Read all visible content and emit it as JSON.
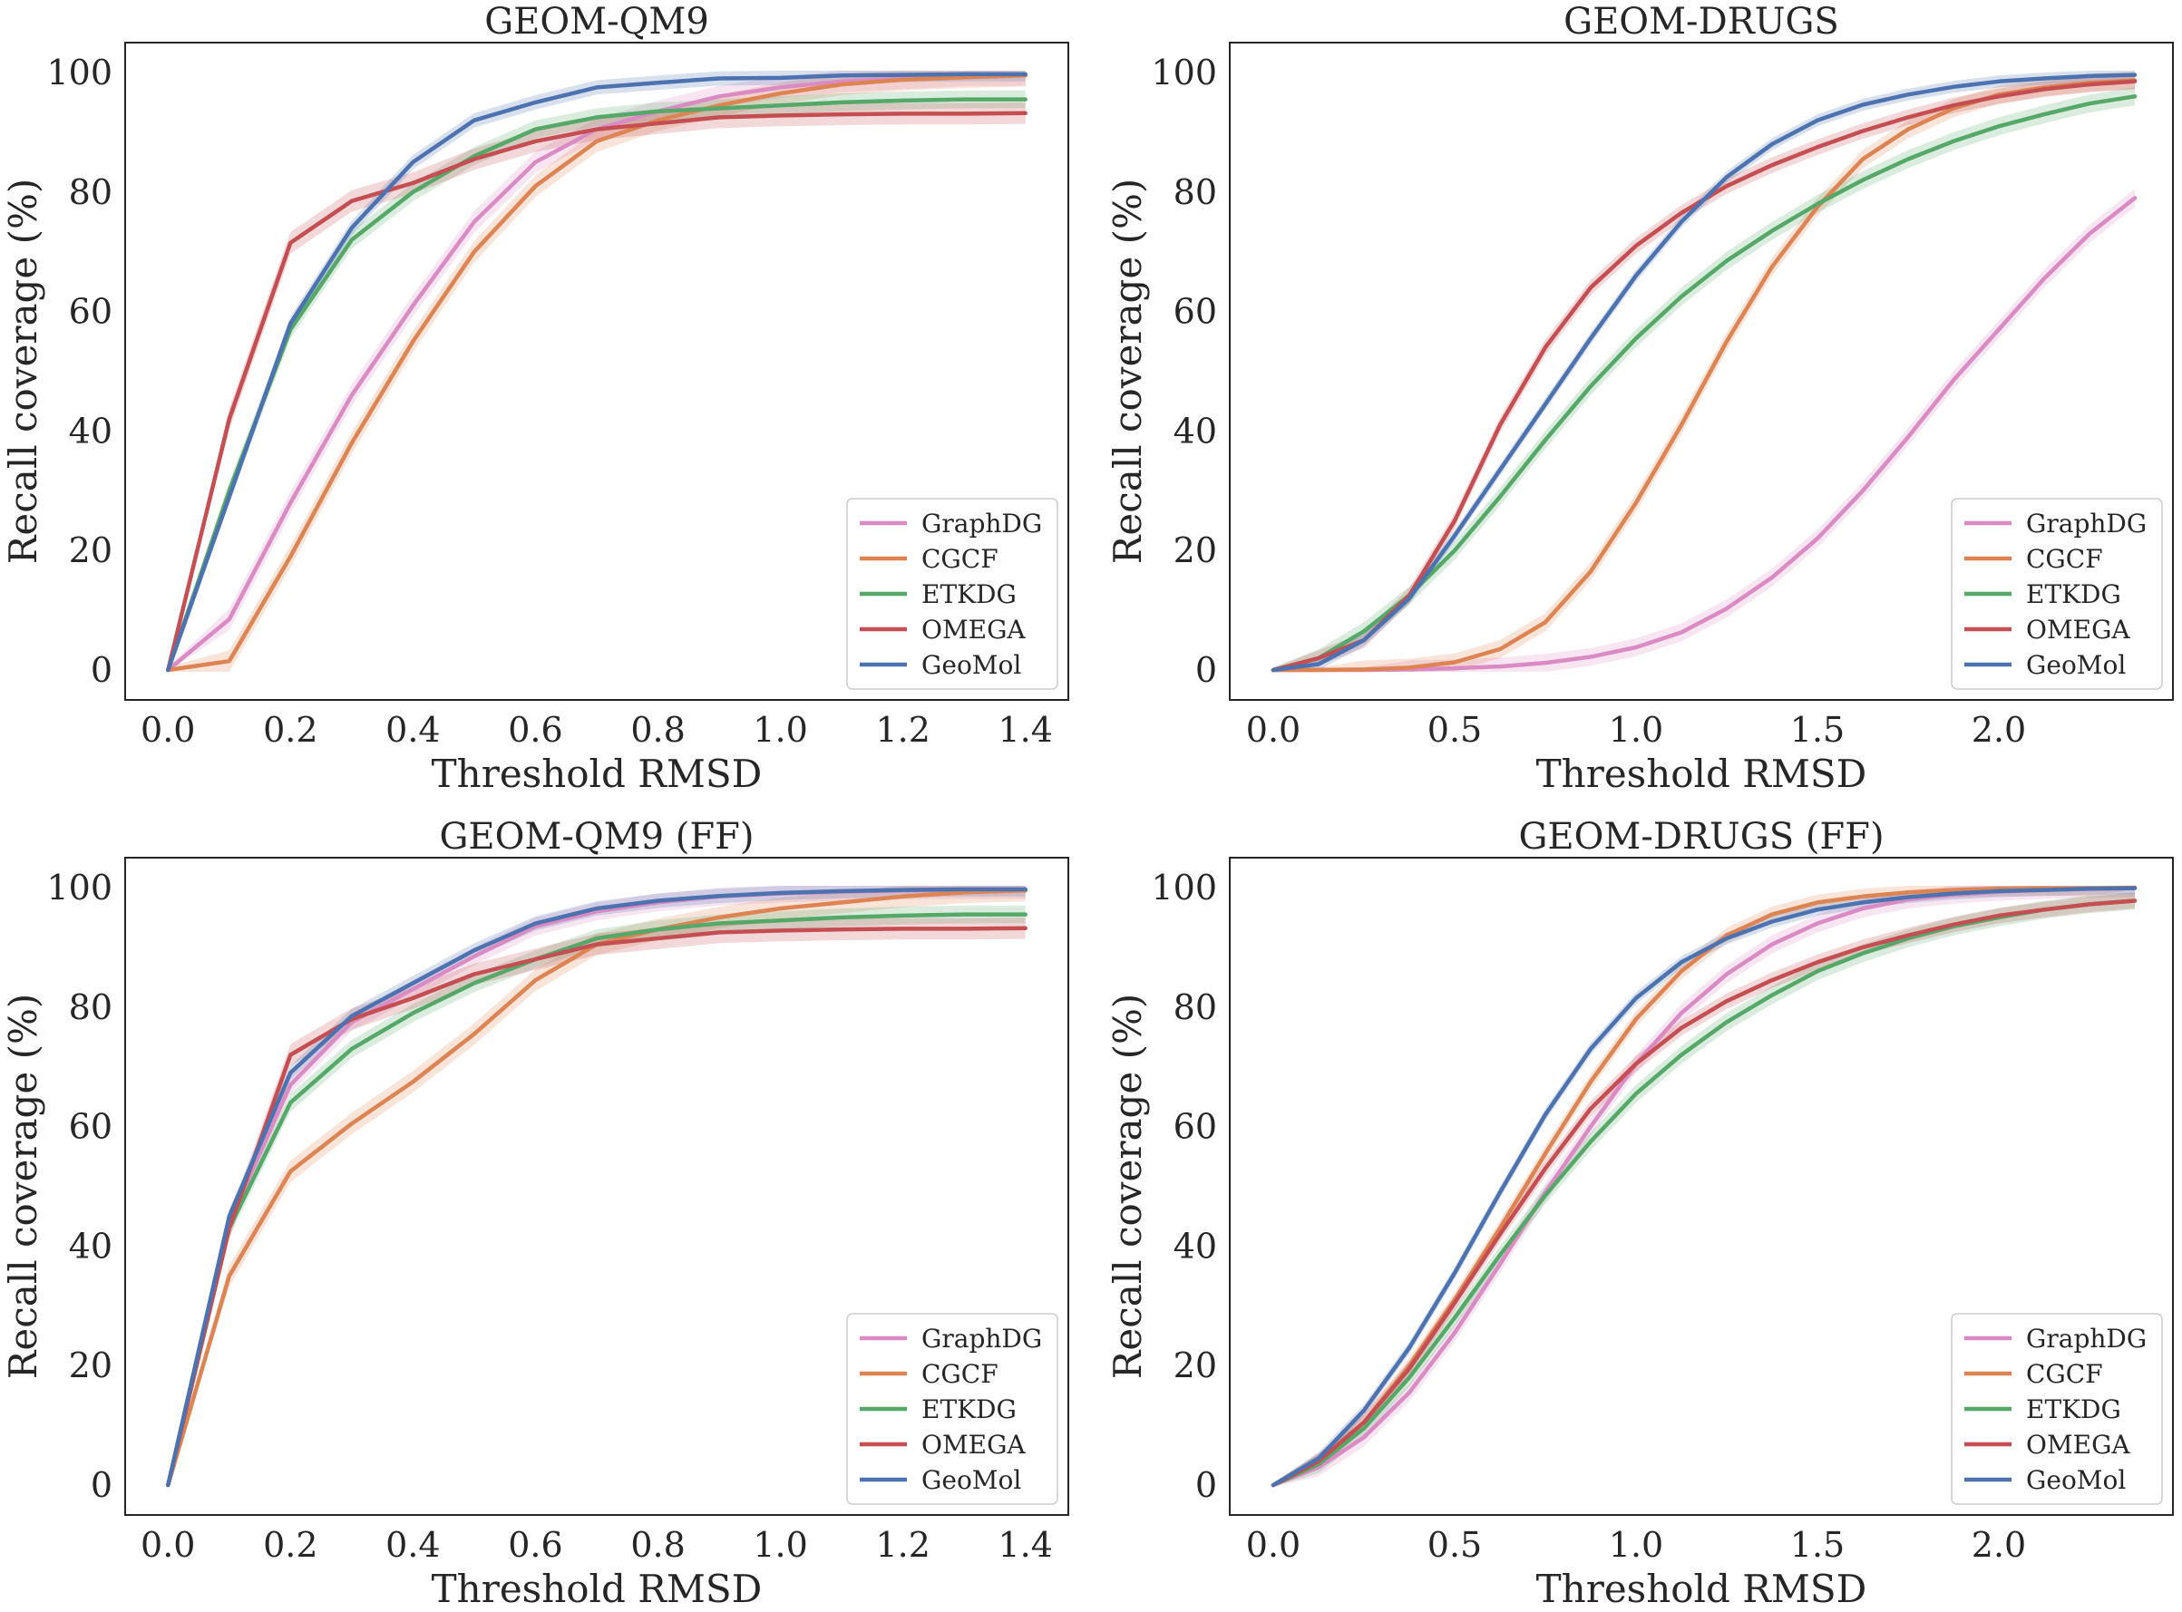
{
  "colors": {
    "GraphDG": "#da8bc3",
    "CGCF": "#dd8452",
    "ETKDG": "#55a868",
    "OMEGA": "#c44e52",
    "GeoMol": "#4c72b0"
  },
  "chart_data": [
    {
      "type": "line",
      "title": "GEOM-QM9",
      "xlabel": "Threshold RMSD",
      "ylabel": "Recall coverage (%)",
      "xlim": [
        -0.07,
        1.47
      ],
      "ylim": [
        -5,
        105
      ],
      "xticks": [
        0.0,
        0.2,
        0.4,
        0.6,
        0.8,
        1.0,
        1.2,
        1.4
      ],
      "xtick_labels": [
        "0.0",
        "0.2",
        "0.4",
        "0.6",
        "0.8",
        "1.0",
        "1.2",
        "1.4"
      ],
      "yticks": [
        0,
        20,
        40,
        60,
        80,
        100
      ],
      "ytick_labels": [
        "0",
        "20",
        "40",
        "60",
        "80",
        "100"
      ],
      "legend": "bottom-right",
      "x": [
        0.0,
        0.1,
        0.2,
        0.3,
        0.4,
        0.5,
        0.6,
        0.7,
        0.8,
        0.9,
        1.0,
        1.1,
        1.2,
        1.3,
        1.4
      ],
      "series": [
        {
          "name": "GraphDG",
          "values": [
            0,
            8.5,
            28,
            46,
            61,
            75,
            85,
            90.5,
            93.5,
            96,
            97.5,
            98.5,
            99,
            99.5,
            99.5
          ],
          "band": 1.8
        },
        {
          "name": "CGCF",
          "values": [
            0,
            1.5,
            19,
            38,
            55,
            70,
            81,
            88.5,
            92,
            94.5,
            96.5,
            98,
            98.8,
            99.2,
            99.5
          ],
          "band": 1.8
        },
        {
          "name": "ETKDG",
          "values": [
            0,
            30,
            57,
            72,
            80,
            86,
            90.5,
            92.5,
            93.5,
            94,
            94.5,
            95,
            95.3,
            95.5,
            95.5
          ],
          "band": 1.5
        },
        {
          "name": "OMEGA",
          "values": [
            0,
            42,
            71.5,
            78.5,
            81.5,
            85.5,
            88.5,
            90.5,
            91.5,
            92.5,
            92.8,
            93,
            93.1,
            93.1,
            93.2
          ],
          "band": 1.8
        },
        {
          "name": "GeoMol",
          "values": [
            0,
            29,
            58,
            74,
            85,
            92,
            95,
            97.5,
            98.3,
            99,
            99.1,
            99.5,
            99.6,
            99.7,
            99.7
          ],
          "band": 1.2
        }
      ]
    },
    {
      "type": "line",
      "title": "GEOM-DRUGS",
      "xlabel": "Threshold RMSD",
      "ylabel": "Recall coverage (%)",
      "xlim": [
        -0.12,
        2.48
      ],
      "ylim": [
        -5,
        105
      ],
      "xticks": [
        0.0,
        0.5,
        1.0,
        1.5,
        2.0
      ],
      "xtick_labels": [
        "0.0",
        "0.5",
        "1.0",
        "1.5",
        "2.0"
      ],
      "yticks": [
        0,
        20,
        40,
        60,
        80,
        100
      ],
      "ytick_labels": [
        "0",
        "20",
        "40",
        "60",
        "80",
        "100"
      ],
      "legend": "bottom-right",
      "x": [
        0.0,
        0.125,
        0.25,
        0.375,
        0.5,
        0.625,
        0.75,
        0.875,
        1.0,
        1.125,
        1.25,
        1.375,
        1.5,
        1.625,
        1.75,
        1.875,
        2.0,
        2.125,
        2.25,
        2.375
      ],
      "series": [
        {
          "name": "GraphDG",
          "values": [
            0,
            0,
            0,
            0.1,
            0.3,
            0.6,
            1.2,
            2.2,
            3.8,
            6.3,
            10.3,
            15.5,
            22,
            30,
            39,
            48.5,
            57,
            65.5,
            73,
            79
          ],
          "band": 1.5
        },
        {
          "name": "CGCF",
          "values": [
            0,
            0,
            0.1,
            0.4,
            1.3,
            3.5,
            8,
            16.5,
            28,
            41,
            55,
            67.5,
            77.5,
            85.5,
            90.5,
            94,
            96.3,
            97.5,
            98.3,
            98.7
          ],
          "band": 1.5
        },
        {
          "name": "ETKDG",
          "values": [
            0,
            2,
            6.5,
            12.5,
            20,
            29,
            38.5,
            47.5,
            55.5,
            62.5,
            68.5,
            73.5,
            78,
            82,
            85.5,
            88.5,
            91,
            93,
            94.8,
            96
          ],
          "band": 1.5
        },
        {
          "name": "OMEGA",
          "values": [
            0,
            2,
            5,
            12.5,
            25,
            41,
            54,
            64,
            71,
            76.5,
            81,
            84.5,
            87.5,
            90.2,
            92.5,
            94.5,
            96,
            97.2,
            98,
            98.5
          ],
          "band": 1.3
        },
        {
          "name": "GeoMol",
          "values": [
            0,
            1,
            5,
            12,
            22.5,
            33.5,
            44.5,
            55.5,
            66,
            75,
            82.5,
            88,
            92,
            94.6,
            96.3,
            97.6,
            98.5,
            99,
            99.4,
            99.6
          ],
          "band": 1.0
        }
      ]
    },
    {
      "type": "line",
      "title": "GEOM-QM9 (FF)",
      "xlabel": "Threshold RMSD",
      "ylabel": "Recall coverage (%)",
      "xlim": [
        -0.07,
        1.47
      ],
      "ylim": [
        -5,
        105
      ],
      "xticks": [
        0.0,
        0.2,
        0.4,
        0.6,
        0.8,
        1.0,
        1.2,
        1.4
      ],
      "xtick_labels": [
        "0.0",
        "0.2",
        "0.4",
        "0.6",
        "0.8",
        "1.0",
        "1.2",
        "1.4"
      ],
      "yticks": [
        0,
        20,
        40,
        60,
        80,
        100
      ],
      "ytick_labels": [
        "0",
        "20",
        "40",
        "60",
        "80",
        "100"
      ],
      "legend": "bottom-right",
      "x": [
        0.0,
        0.1,
        0.2,
        0.3,
        0.4,
        0.5,
        0.6,
        0.7,
        0.8,
        0.9,
        1.0,
        1.1,
        1.2,
        1.3,
        1.4
      ],
      "series": [
        {
          "name": "GraphDG",
          "values": [
            0,
            44,
            67,
            77.5,
            83,
            88.5,
            93.5,
            96,
            97.5,
            98.5,
            99,
            99.3,
            99.5,
            99.6,
            99.6
          ],
          "band": 1.5
        },
        {
          "name": "CGCF",
          "values": [
            0,
            35,
            52.5,
            60.5,
            67.5,
            75.5,
            84.5,
            90.5,
            93,
            95,
            96.5,
            97.5,
            98.5,
            99.2,
            99.5
          ],
          "band": 1.8
        },
        {
          "name": "ETKDG",
          "values": [
            0,
            43,
            64,
            73,
            79,
            84,
            88,
            91.5,
            93,
            94,
            94.5,
            95,
            95.3,
            95.5,
            95.5
          ],
          "band": 1.5
        },
        {
          "name": "OMEGA",
          "values": [
            0,
            43,
            72,
            78,
            81.5,
            85.5,
            88,
            90.5,
            91.5,
            92.5,
            92.8,
            93,
            93.1,
            93.1,
            93.2
          ],
          "band": 1.8
        },
        {
          "name": "GeoMol",
          "values": [
            0,
            45,
            69,
            78.5,
            84,
            89.5,
            94,
            96.5,
            97.8,
            98.6,
            99.1,
            99.4,
            99.6,
            99.7,
            99.7
          ],
          "band": 1.2
        }
      ]
    },
    {
      "type": "line",
      "title": "GEOM-DRUGS (FF)",
      "xlabel": "Threshold RMSD",
      "ylabel": "Recall coverage (%)",
      "xlim": [
        -0.12,
        2.48
      ],
      "ylim": [
        -5,
        105
      ],
      "xticks": [
        0.0,
        0.5,
        1.0,
        1.5,
        2.0
      ],
      "xtick_labels": [
        "0.0",
        "0.5",
        "1.0",
        "1.5",
        "2.0"
      ],
      "yticks": [
        0,
        20,
        40,
        60,
        80,
        100
      ],
      "ytick_labels": [
        "0",
        "20",
        "40",
        "60",
        "80",
        "100"
      ],
      "legend": "bottom-right",
      "x": [
        0.0,
        0.125,
        0.25,
        0.375,
        0.5,
        0.625,
        0.75,
        0.875,
        1.0,
        1.125,
        1.25,
        1.375,
        1.5,
        1.625,
        1.75,
        1.875,
        2.0,
        2.125,
        2.25,
        2.375
      ],
      "series": [
        {
          "name": "GraphDG",
          "values": [
            0,
            3,
            8,
            15.5,
            25.5,
            37,
            49,
            60,
            70.5,
            79,
            85.5,
            90.5,
            94,
            96.5,
            98,
            98.8,
            99.3,
            99.6,
            99.8,
            99.9
          ],
          "band": 1.5
        },
        {
          "name": "CGCF",
          "values": [
            0,
            4,
            10.5,
            20,
            31,
            43,
            55.5,
            67.5,
            78,
            86,
            92,
            95.5,
            97.5,
            98.5,
            99.2,
            99.6,
            99.8,
            99.9,
            99.9,
            100
          ],
          "band": 1.3
        },
        {
          "name": "ETKDG",
          "values": [
            0,
            3.5,
            9.5,
            18,
            28,
            38.5,
            48.5,
            57.5,
            65.5,
            72,
            77.5,
            82,
            86,
            89,
            91.5,
            93.5,
            95,
            96.3,
            97.2,
            97.8
          ],
          "band": 1.5
        },
        {
          "name": "OMEGA",
          "values": [
            0,
            4,
            10.5,
            19.5,
            30.5,
            42,
            53,
            63,
            70.5,
            76.5,
            81,
            84.5,
            87.5,
            90,
            92,
            93.8,
            95.3,
            96.3,
            97.2,
            97.8
          ],
          "band": 1.3
        },
        {
          "name": "GeoMol",
          "values": [
            0,
            4.5,
            12.5,
            23,
            35.5,
            49,
            62,
            73,
            81.5,
            87.5,
            91.5,
            94.3,
            96.3,
            97.5,
            98.4,
            99,
            99.4,
            99.6,
            99.8,
            99.9
          ],
          "band": 1.0
        }
      ]
    }
  ]
}
